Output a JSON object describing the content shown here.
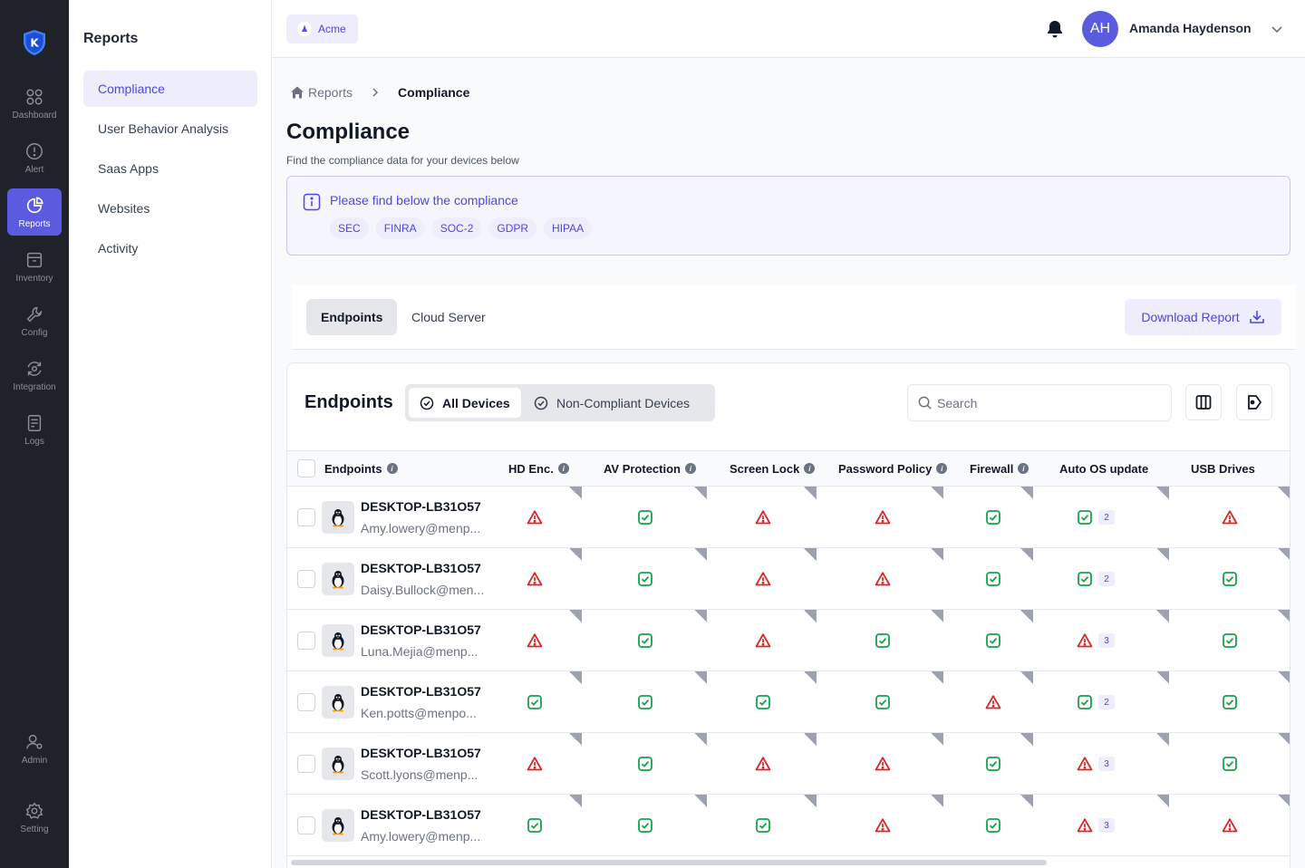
{
  "rail": {
    "items": [
      {
        "label": "Dashboard",
        "icon": "grid-icon"
      },
      {
        "label": "Alert",
        "icon": "alert-circle-icon"
      },
      {
        "label": "Reports",
        "icon": "pie-chart-icon",
        "active": true
      },
      {
        "label": "Inventory",
        "icon": "archive-icon"
      },
      {
        "label": "Config",
        "icon": "wrench-icon"
      },
      {
        "label": "Integration",
        "icon": "sync-icon"
      },
      {
        "label": "Logs",
        "icon": "file-text-icon"
      }
    ],
    "bottom": [
      {
        "label": "Admin",
        "icon": "admin-user-icon"
      },
      {
        "label": "Setting",
        "icon": "gear-icon"
      }
    ],
    "logo_letter": "K"
  },
  "subnav": {
    "title": "Reports",
    "items": [
      "Compliance",
      "User Behavior Analysis",
      "Saas Apps",
      "Websites",
      "Activity"
    ],
    "active_index": 0
  },
  "topbar": {
    "org": "Acme",
    "user_initials": "AH",
    "user_name": "Amanda Haydenson"
  },
  "breadcrumb": {
    "root": "Reports",
    "current": "Compliance"
  },
  "page": {
    "title": "Compliance",
    "subtitle": "Find the compliance data for your devices below"
  },
  "banner": {
    "text": "Please find below the compliance",
    "tags": [
      "SEC",
      "FINRA",
      "SOC-2",
      "GDPR",
      "HIPAA"
    ]
  },
  "tabs": {
    "items": [
      "Endpoints",
      "Cloud Server"
    ],
    "active_index": 0,
    "download_label": "Download Report"
  },
  "card": {
    "title": "Endpoints",
    "segments": [
      "All Devices",
      "Non-Compliant Devices"
    ],
    "active_segment": 0,
    "search_placeholder": "Search"
  },
  "table": {
    "columns": [
      {
        "label": "Endpoints",
        "info": true
      },
      {
        "label": "HD Enc.",
        "info": true
      },
      {
        "label": "AV Protection",
        "info": true
      },
      {
        "label": "Screen Lock",
        "info": true
      },
      {
        "label": "Password Policy",
        "info": true
      },
      {
        "label": "Firewall",
        "info": true
      },
      {
        "label": "Auto OS update",
        "info": false
      },
      {
        "label": "USB Drives",
        "info": false
      }
    ],
    "rows": [
      {
        "name": "DESKTOP-LB31O57",
        "email": "Amy.lowery@menp...",
        "status": [
          "fail",
          "pass",
          "fail",
          "fail",
          "pass",
          "pass",
          "fail"
        ],
        "os_badge": "2"
      },
      {
        "name": "DESKTOP-LB31O57",
        "email": "Daisy.Bullock@men...",
        "status": [
          "fail",
          "pass",
          "fail",
          "fail",
          "pass",
          "pass",
          "pass"
        ],
        "os_badge": "2"
      },
      {
        "name": "DESKTOP-LB31O57",
        "email": "Luna.Mejia@menp...",
        "status": [
          "fail",
          "pass",
          "fail",
          "pass",
          "pass",
          "fail",
          "pass"
        ],
        "os_badge": "3"
      },
      {
        "name": "DESKTOP-LB31O57",
        "email": "Ken.potts@menpo...",
        "status": [
          "pass",
          "pass",
          "pass",
          "pass",
          "fail",
          "pass",
          "pass"
        ],
        "os_badge": "2"
      },
      {
        "name": "DESKTOP-LB31O57",
        "email": "Scott.lyons@menp...",
        "status": [
          "fail",
          "pass",
          "fail",
          "fail",
          "pass",
          "fail",
          "pass"
        ],
        "os_badge": "3"
      },
      {
        "name": "DESKTOP-LB31O57",
        "email": "Amy.lowery@menp...",
        "status": [
          "pass",
          "pass",
          "pass",
          "fail",
          "pass",
          "fail",
          "fail"
        ],
        "os_badge": "3"
      }
    ]
  },
  "colors": {
    "accent": "#5b5be0",
    "pass": "#16a34a",
    "fail": "#dc2626",
    "rail_bg": "#1f2229"
  }
}
